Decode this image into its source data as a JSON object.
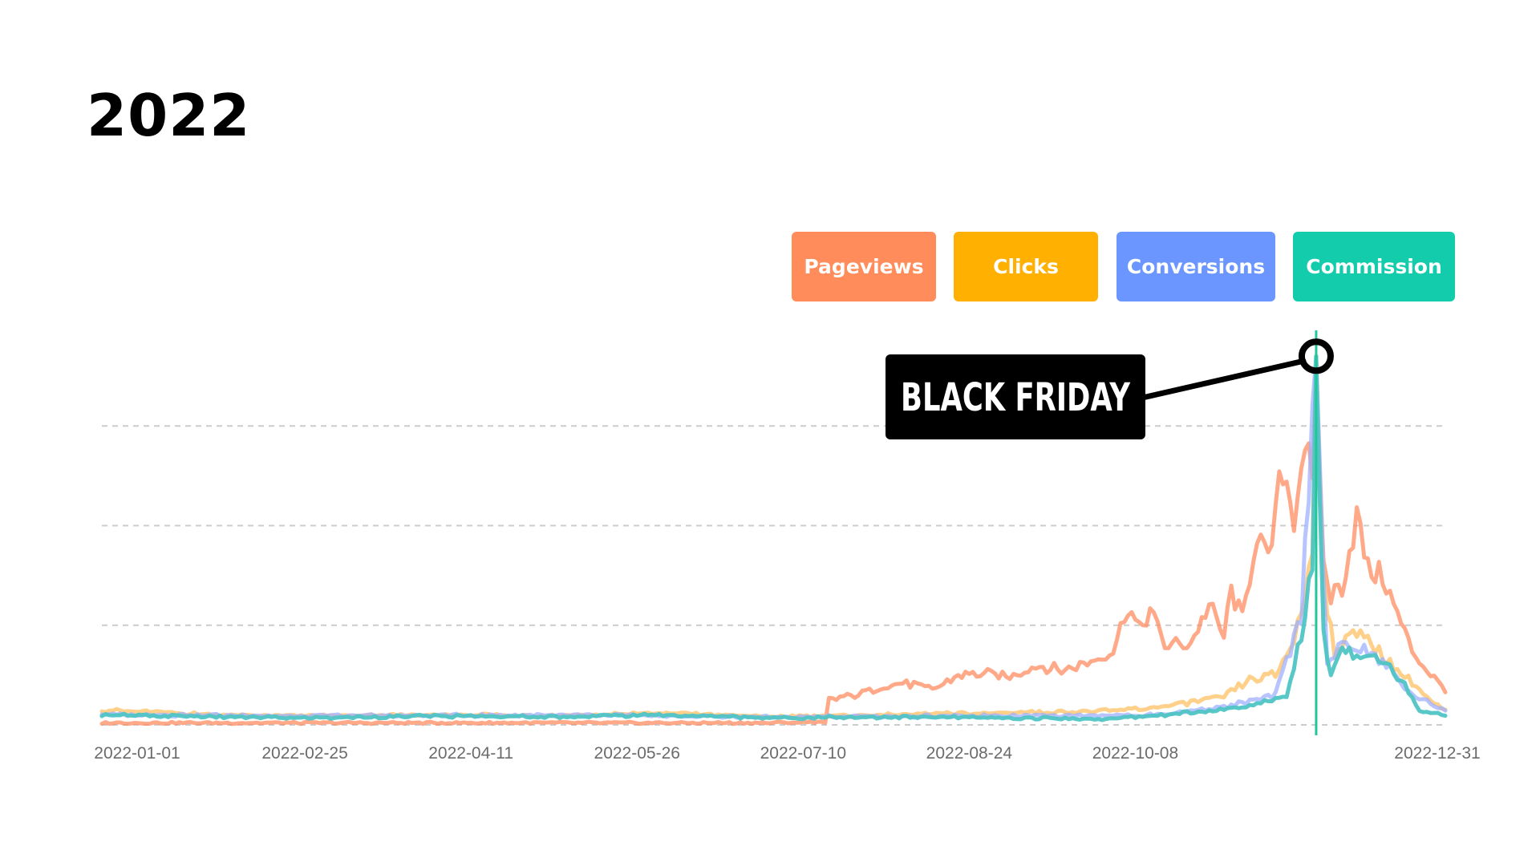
{
  "chart_data": {
    "type": "line",
    "title": "2022",
    "x_type": "date",
    "x_range": [
      "2022-01-01",
      "2022-12-31"
    ],
    "x_ticks": [
      "2022-01-01",
      "2022-02-25",
      "2022-04-11",
      "2022-05-26",
      "2022-07-10",
      "2022-08-24",
      "2022-10-08",
      "2022-12-31"
    ],
    "y_range": [
      0,
      4
    ],
    "y_gridlines": [
      1,
      2,
      3
    ],
    "y_axis_labels": "none",
    "grid": "horizontal dashed",
    "legend_position": "top-right",
    "legend": [
      "Pageviews",
      "Clicks",
      "Conversions",
      "Commission"
    ],
    "series": [
      {
        "name": "Pageviews",
        "color": "#ff8c61",
        "points": [
          [
            "2022-01-01",
            0.02
          ],
          [
            "2022-03-01",
            0.02
          ],
          [
            "2022-05-01",
            0.02
          ],
          [
            "2022-07-01",
            0.02
          ],
          [
            "2022-07-16",
            0.03
          ],
          [
            "2022-07-17",
            0.25
          ],
          [
            "2022-07-24",
            0.3
          ],
          [
            "2022-07-31",
            0.38
          ],
          [
            "2022-08-07",
            0.42
          ],
          [
            "2022-08-14",
            0.35
          ],
          [
            "2022-08-21",
            0.5
          ],
          [
            "2022-08-28",
            0.52
          ],
          [
            "2022-09-04",
            0.48
          ],
          [
            "2022-09-11",
            0.6
          ],
          [
            "2022-09-18",
            0.55
          ],
          [
            "2022-09-25",
            0.62
          ],
          [
            "2022-10-02",
            0.75
          ],
          [
            "2022-10-06",
            1.2
          ],
          [
            "2022-10-09",
            0.95
          ],
          [
            "2022-10-12",
            1.15
          ],
          [
            "2022-10-16",
            0.8
          ],
          [
            "2022-10-23",
            0.82
          ],
          [
            "2022-10-28",
            1.2
          ],
          [
            "2022-11-01",
            0.88
          ],
          [
            "2022-11-03",
            1.35
          ],
          [
            "2022-11-06",
            1.05
          ],
          [
            "2022-11-10",
            1.95
          ],
          [
            "2022-11-13",
            1.6
          ],
          [
            "2022-11-17",
            2.6
          ],
          [
            "2022-11-20",
            2.1
          ],
          [
            "2022-11-23",
            2.9
          ],
          [
            "2022-11-25",
            2.35
          ],
          [
            "2022-11-26",
            3.6
          ],
          [
            "2022-11-28",
            1.6
          ],
          [
            "2022-11-30",
            1.3
          ],
          [
            "2022-12-03",
            1.4
          ],
          [
            "2022-12-07",
            2.1
          ],
          [
            "2022-12-10",
            1.55
          ],
          [
            "2022-12-14",
            1.5
          ],
          [
            "2022-12-18",
            1.1
          ],
          [
            "2022-12-22",
            0.75
          ],
          [
            "2022-12-26",
            0.55
          ],
          [
            "2022-12-31",
            0.35
          ]
        ]
      },
      {
        "name": "Clicks",
        "color": "#ffc061",
        "points": [
          [
            "2022-01-01",
            0.15
          ],
          [
            "2022-02-01",
            0.1
          ],
          [
            "2022-03-01",
            0.09
          ],
          [
            "2022-04-01",
            0.1
          ],
          [
            "2022-05-01",
            0.09
          ],
          [
            "2022-06-01",
            0.12
          ],
          [
            "2022-07-01",
            0.08
          ],
          [
            "2022-08-01",
            0.1
          ],
          [
            "2022-09-01",
            0.12
          ],
          [
            "2022-10-01",
            0.14
          ],
          [
            "2022-10-15",
            0.18
          ],
          [
            "2022-11-01",
            0.28
          ],
          [
            "2022-11-08",
            0.45
          ],
          [
            "2022-11-15",
            0.5
          ],
          [
            "2022-11-20",
            0.85
          ],
          [
            "2022-11-23",
            1.3
          ],
          [
            "2022-11-25",
            1.8
          ],
          [
            "2022-11-26",
            3.7
          ],
          [
            "2022-11-28",
            1.5
          ],
          [
            "2022-12-01",
            0.65
          ],
          [
            "2022-12-05",
            1.0
          ],
          [
            "2022-12-09",
            0.85
          ],
          [
            "2022-12-13",
            0.75
          ],
          [
            "2022-12-18",
            0.55
          ],
          [
            "2022-12-23",
            0.4
          ],
          [
            "2022-12-28",
            0.2
          ],
          [
            "2022-12-31",
            0.15
          ]
        ]
      },
      {
        "name": "Conversions",
        "color": "#9fb0ff",
        "points": [
          [
            "2022-01-01",
            0.1
          ],
          [
            "2022-03-01",
            0.09
          ],
          [
            "2022-05-01",
            0.1
          ],
          [
            "2022-07-01",
            0.08
          ],
          [
            "2022-09-01",
            0.09
          ],
          [
            "2022-10-15",
            0.1
          ],
          [
            "2022-11-01",
            0.18
          ],
          [
            "2022-11-15",
            0.3
          ],
          [
            "2022-11-22",
            1.1
          ],
          [
            "2022-11-26",
            3.7
          ],
          [
            "2022-11-29",
            0.6
          ],
          [
            "2022-12-03",
            0.8
          ],
          [
            "2022-12-09",
            0.75
          ],
          [
            "2022-12-15",
            0.6
          ],
          [
            "2022-12-22",
            0.3
          ],
          [
            "2022-12-31",
            0.15
          ]
        ]
      },
      {
        "name": "Commission",
        "color": "#4fc4c4",
        "points": [
          [
            "2022-01-01",
            0.1
          ],
          [
            "2022-02-01",
            0.08
          ],
          [
            "2022-03-01",
            0.07
          ],
          [
            "2022-04-01",
            0.09
          ],
          [
            "2022-05-01",
            0.08
          ],
          [
            "2022-06-01",
            0.1
          ],
          [
            "2022-07-01",
            0.07
          ],
          [
            "2022-08-01",
            0.08
          ],
          [
            "2022-09-01",
            0.07
          ],
          [
            "2022-10-01",
            0.06
          ],
          [
            "2022-10-15",
            0.1
          ],
          [
            "2022-11-01",
            0.15
          ],
          [
            "2022-11-10",
            0.2
          ],
          [
            "2022-11-18",
            0.3
          ],
          [
            "2022-11-22",
            0.9
          ],
          [
            "2022-11-25",
            1.6
          ],
          [
            "2022-11-26",
            3.7
          ],
          [
            "2022-11-28",
            0.9
          ],
          [
            "2022-11-30",
            0.5
          ],
          [
            "2022-12-03",
            0.8
          ],
          [
            "2022-12-07",
            0.7
          ],
          [
            "2022-12-10",
            0.75
          ],
          [
            "2022-12-15",
            0.6
          ],
          [
            "2022-12-20",
            0.4
          ],
          [
            "2022-12-24",
            0.15
          ],
          [
            "2022-12-28",
            0.12
          ],
          [
            "2022-12-31",
            0.1
          ]
        ]
      }
    ],
    "marker_line": {
      "date": "2022-11-26",
      "color": "#1fc79a"
    },
    "annotations": [
      {
        "text": "BLACK FRIDAY",
        "date": "2022-11-26",
        "y": 3.7
      }
    ]
  },
  "legend_colors": {
    "Pageviews": "#ff8c5a",
    "Clicks": "#ffb000",
    "Conversions": "#6b96ff",
    "Commission": "#12ccab"
  }
}
